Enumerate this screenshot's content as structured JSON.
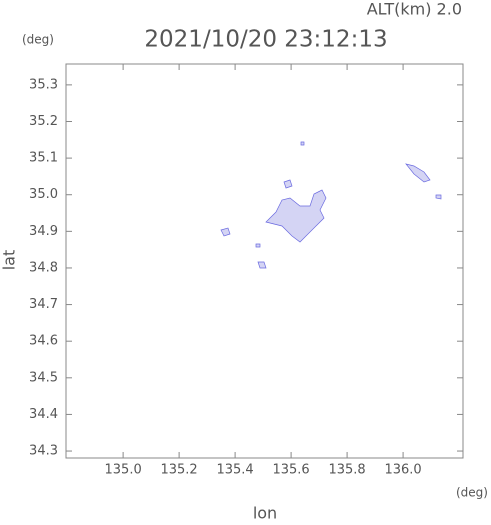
{
  "chart_data": {
    "type": "map",
    "title": "2021/10/20 23:12:13",
    "altitude_label": "ALT(km) 2.0",
    "x_label": "lon",
    "y_label": "lat",
    "x_unit": "(deg)",
    "y_unit": "(deg)",
    "xlim": [
      134.796,
      136.214
    ],
    "ylim": [
      34.281,
      35.357
    ],
    "xticks": [
      {
        "value": 135.0,
        "label": "135.0"
      },
      135.2,
      135.4,
      135.6,
      135.8,
      {
        "value": 136.0,
        "label": "136.0"
      }
    ],
    "yticks": [
      34.3,
      34.4,
      34.5,
      34.6,
      34.7,
      34.8,
      34.9,
      {
        "value": 35.0,
        "label": "35.0"
      },
      35.1,
      35.2,
      35.3
    ]
  }
}
